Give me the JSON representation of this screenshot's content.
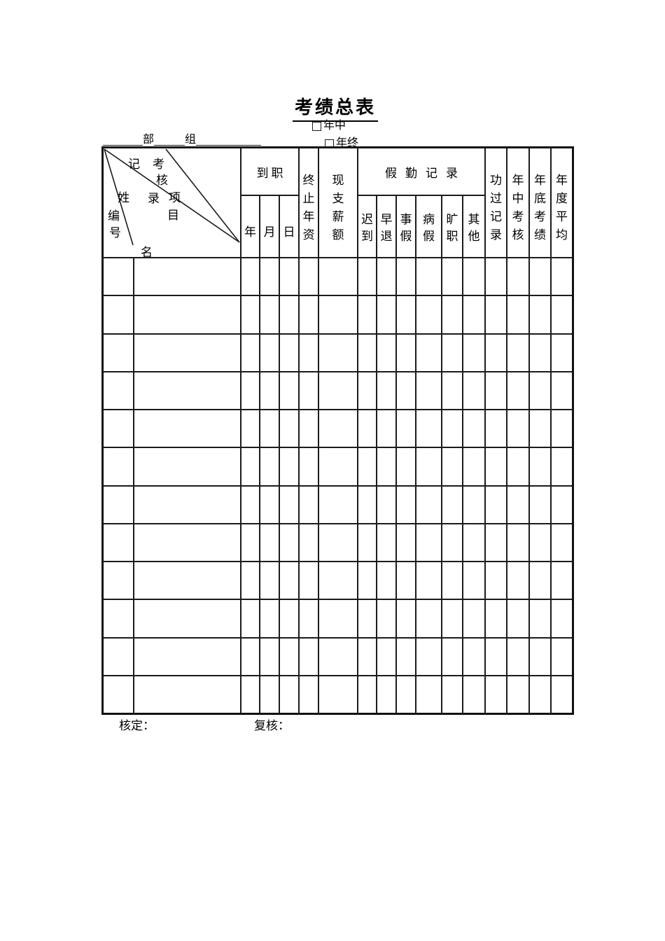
{
  "title": "考绩总表",
  "form_type": {
    "midyear": "年中",
    "yearend": "年终"
  },
  "dept_line": {
    "dept": "部",
    "group": "组"
  },
  "table": {
    "corner": {
      "number": "编号",
      "name": "姓名",
      "record": "记录",
      "items": "考核项目"
    },
    "header": {
      "onboard": "到职",
      "onboard_sub": [
        "年",
        "月",
        "日"
      ],
      "vertical_left": [
        "终止年资",
        "现支薪额"
      ],
      "attendance": "假勤记录",
      "attendance_sub": [
        "迟到",
        "早退",
        "事假",
        "病假",
        "旷职",
        "其他"
      ],
      "vertical_right": [
        "功过记录",
        "年中考核",
        "年底考绩",
        "年度平均"
      ]
    },
    "data_rows": 12
  },
  "footer": {
    "approve": "核定：",
    "review": "复核："
  }
}
